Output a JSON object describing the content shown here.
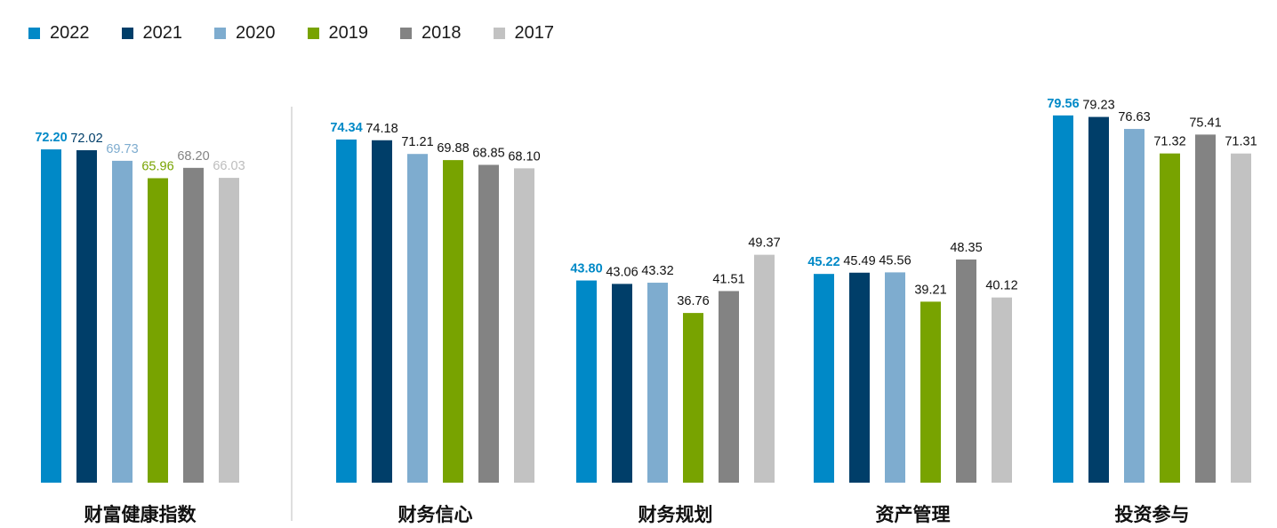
{
  "chart_data": {
    "type": "bar",
    "title": "",
    "xlabel": "",
    "ylabel": "",
    "ylim": [
      0,
      80
    ],
    "grid": false,
    "legend_position": "top-left",
    "categories": [
      "财富健康指数",
      "财务信心",
      "财务规划",
      "资产管理",
      "投资参与"
    ],
    "series": [
      {
        "name": "2022",
        "color": "#0089c7",
        "values": [
          72.2,
          74.34,
          43.8,
          45.22,
          79.56
        ]
      },
      {
        "name": "2021",
        "color": "#003e69",
        "values": [
          72.02,
          74.18,
          43.06,
          45.49,
          79.23
        ]
      },
      {
        "name": "2020",
        "color": "#7eaccf",
        "values": [
          69.73,
          71.21,
          43.32,
          45.56,
          76.63
        ]
      },
      {
        "name": "2019",
        "color": "#78a300",
        "values": [
          65.96,
          69.88,
          36.76,
          39.21,
          71.32
        ]
      },
      {
        "name": "2018",
        "color": "#838383",
        "values": [
          68.2,
          68.85,
          41.51,
          48.35,
          75.41
        ]
      },
      {
        "name": "2017",
        "color": "#c2c2c2",
        "values": [
          66.03,
          68.1,
          49.37,
          40.12,
          71.31
        ]
      }
    ],
    "label_colors": {
      "first_group": [
        "#0089c7",
        "#003e69",
        "#7eaccf",
        "#78a300",
        "#838383",
        "#bdbdbd"
      ],
      "other_groups": [
        "#0089c7",
        "#111111",
        "#111111",
        "#111111",
        "#111111",
        "#111111"
      ]
    },
    "divider_after_category": 0
  }
}
